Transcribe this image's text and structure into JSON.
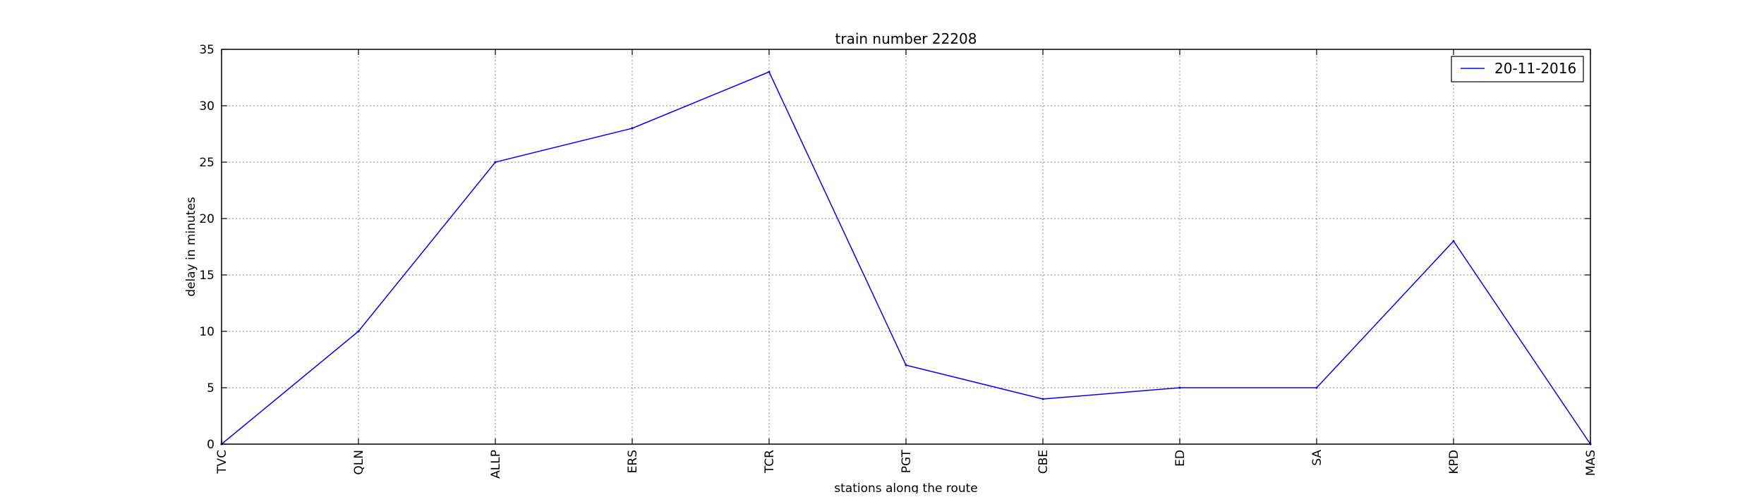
{
  "chart_data": {
    "type": "line",
    "title": "train number 22208",
    "xlabel": "stations along the route",
    "ylabel": "delay in minutes",
    "categories": [
      "TVC",
      "QLN",
      "ALLP",
      "ERS",
      "TCR",
      "PGT",
      "CBE",
      "ED",
      "SA",
      "KPD",
      "MAS"
    ],
    "series": [
      {
        "name": "20-11-2016",
        "color": "#0000ff",
        "values": [
          0,
          10,
          25,
          28,
          33,
          7,
          4,
          5,
          5,
          18,
          0
        ]
      }
    ],
    "ylim": [
      0,
      35
    ],
    "yticks": [
      0,
      5,
      10,
      15,
      20,
      25,
      30,
      35
    ],
    "grid": true,
    "legend_position": "top-right"
  }
}
